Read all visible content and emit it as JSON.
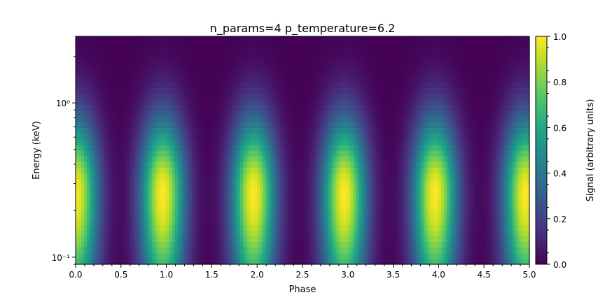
{
  "chart_data": {
    "type": "heatmap",
    "title": "n_params=4 p_temperature=6.2",
    "xlabel": "Phase",
    "ylabel": "Energy (keV)",
    "colorbar_label": "Signal (arbitrary units)",
    "colormap": "viridis",
    "x_scale": "linear",
    "y_scale": "log",
    "xlim": [
      0.0,
      5.0
    ],
    "ylim": [
      0.09,
      2.7
    ],
    "clim": [
      0.0,
      1.0
    ],
    "x_ticks": [
      0.0,
      0.5,
      1.0,
      1.5,
      2.0,
      2.5,
      3.0,
      3.5,
      4.0,
      4.5,
      5.0
    ],
    "x_tick_labels": [
      "0.0",
      "0.5",
      "1.0",
      "1.5",
      "2.0",
      "2.5",
      "3.0",
      "3.5",
      "4.0",
      "4.5",
      "5.0"
    ],
    "y_ticks": [
      0.1,
      1.0
    ],
    "y_tick_labels": [
      "10⁻¹",
      "10⁰"
    ],
    "colorbar_ticks": [
      0.0,
      0.2,
      0.4,
      0.6,
      0.8,
      1.0
    ],
    "colorbar_tick_labels": [
      "0.0",
      "0.2",
      "0.4",
      "0.6",
      "0.8",
      "1.0"
    ],
    "pulse_centers_phase": [
      0.0,
      0.96,
      1.96,
      2.96,
      3.96,
      4.96
    ],
    "pulse_width_phase": 0.17,
    "peak_energy_kev": 0.26,
    "peak_value": 1.0,
    "grid": false,
    "legend": "none"
  }
}
